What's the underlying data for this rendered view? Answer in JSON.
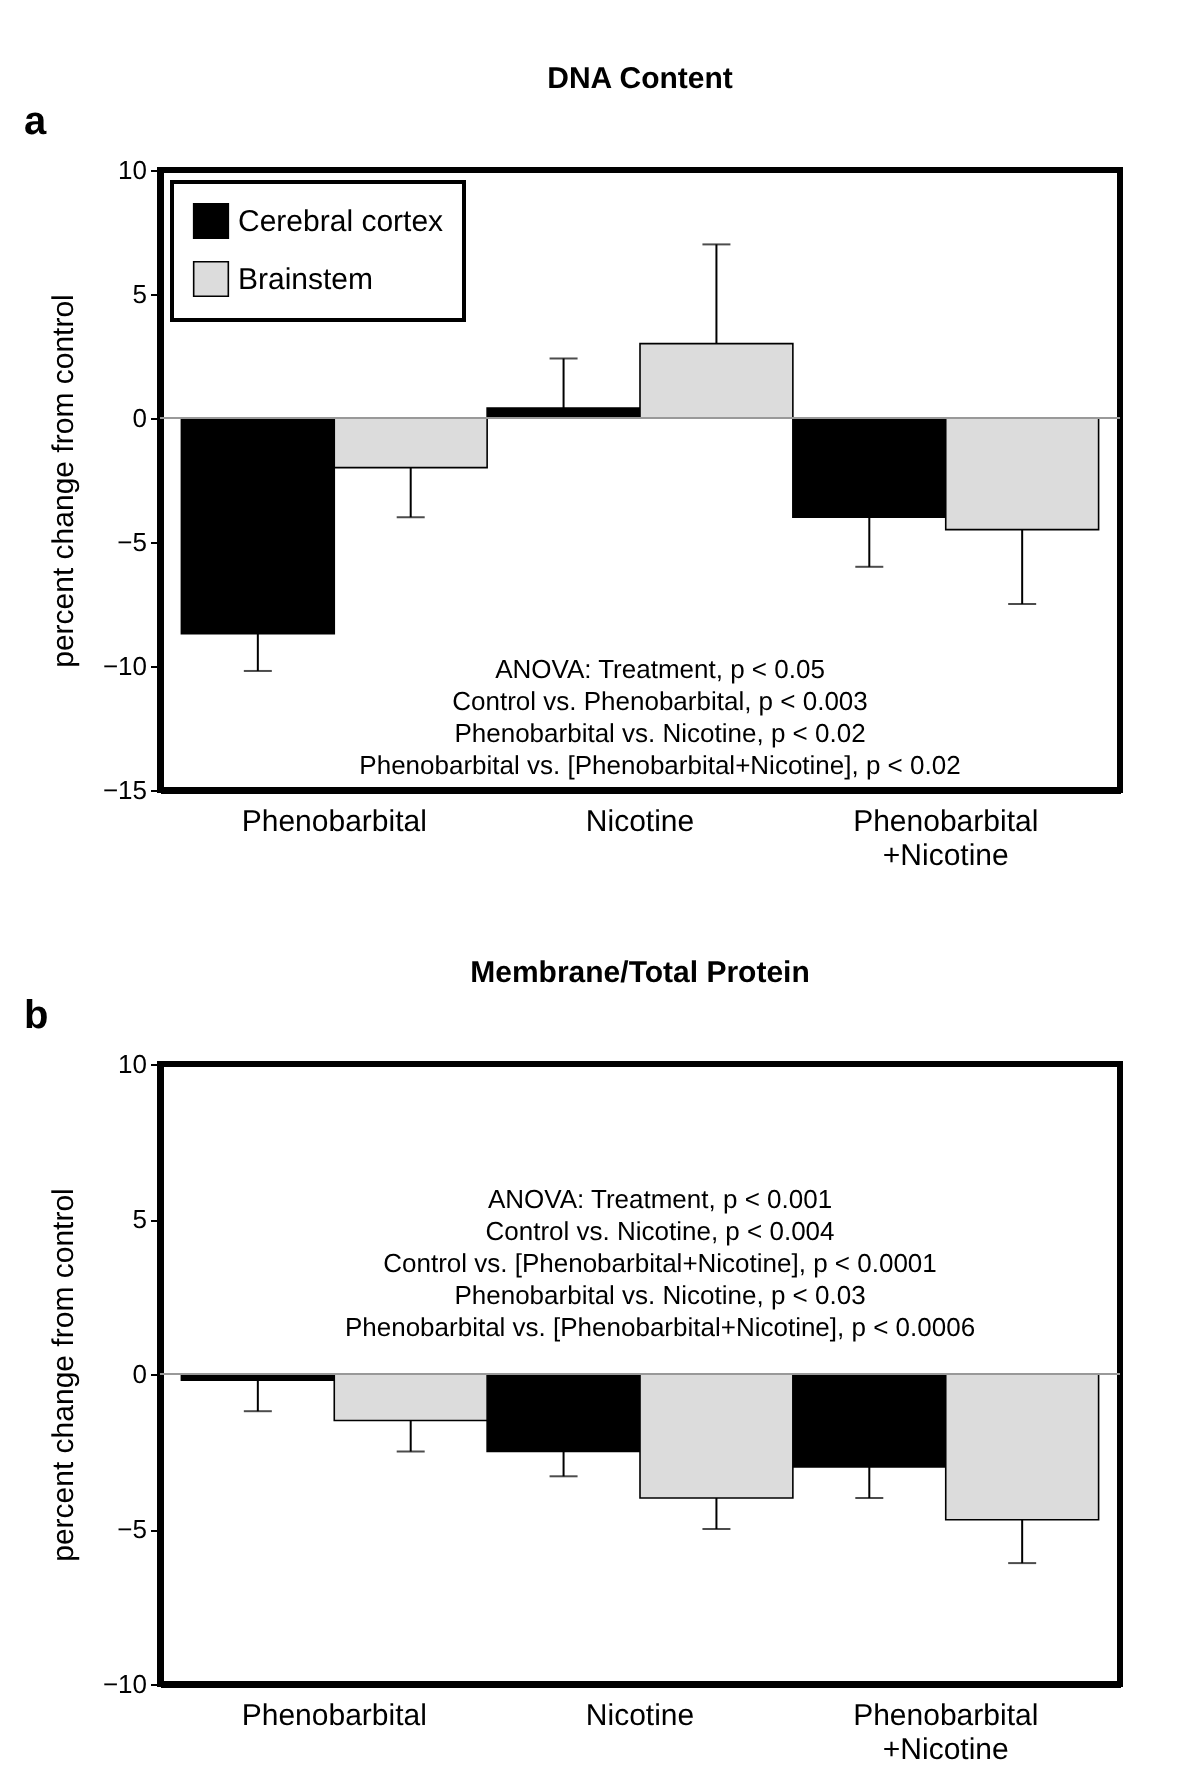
{
  "chart_data": [
    {
      "type": "bar",
      "title": "DNA Content",
      "ylabel": "percent change from control",
      "categories": [
        "Phenobarbital",
        "Nicotine",
        "Phenobarbital\n+Nicotine"
      ],
      "series": [
        {
          "name": "Cerebral cortex",
          "color": "#000000",
          "values": [
            -8.7,
            0.4,
            -4.0
          ],
          "errors": [
            [
              -10.2,
              -8.7
            ],
            [
              0.4,
              2.4
            ],
            [
              -6.0,
              -4.0
            ]
          ]
        },
        {
          "name": "Brainstem",
          "color": "#dcdcdc",
          "values": [
            -2.0,
            3.0,
            -4.5
          ],
          "errors": [
            [
              -4.0,
              -2.0
            ],
            [
              3.0,
              7.0
            ],
            [
              -7.5,
              -4.5
            ]
          ]
        }
      ],
      "ylim": [
        -15,
        10
      ],
      "yticks": [
        -15,
        -10,
        -5,
        0,
        5,
        10
      ],
      "legend": "top left",
      "ref_lines": [
        {
          "axis": "y",
          "value": 0,
          "color": "#999999"
        }
      ],
      "annotations": [
        "a",
        "ANOVA: Treatment, p < 0.05",
        "Control vs. Phenobarbital, p < 0.003",
        "Phenobarbital vs. Nicotine, p < 0.02",
        "Phenobarbital vs. [Phenobarbital+Nicotine], p < 0.02"
      ]
    },
    {
      "type": "bar",
      "title": "Membrane/Total Protein",
      "ylabel": "percent change from control",
      "categories": [
        "Phenobarbital",
        "Nicotine",
        "Phenobarbital\n+Nicotine"
      ],
      "series": [
        {
          "name": "Cerebral cortex",
          "color": "#000000",
          "values": [
            -0.2,
            -2.5,
            -3.0
          ],
          "errors": [
            [
              -1.2,
              -0.2
            ],
            [
              -3.3,
              -2.5
            ],
            [
              -4.0,
              -3.0
            ]
          ]
        },
        {
          "name": "Brainstem",
          "color": "#dcdcdc",
          "values": [
            -1.5,
            -4.0,
            -4.7
          ],
          "errors": [
            [
              -2.5,
              -1.5
            ],
            [
              -5.0,
              -4.0
            ],
            [
              -6.1,
              -4.7
            ]
          ]
        }
      ],
      "ylim": [
        -10,
        10
      ],
      "yticks": [
        -10,
        -5,
        0,
        5,
        10
      ],
      "legend": "top left",
      "ref_lines": [
        {
          "axis": "y",
          "value": 0,
          "color": "#999999"
        }
      ],
      "annotations": [
        "b",
        "ANOVA: Treatment, p < 0.001",
        "Control vs. Nicotine, p < 0.004",
        "Control vs. [Phenobarbital+Nicotine], p < 0.0001",
        "Phenobarbital vs. Nicotine, p < 0.03",
        "Phenobarbital vs. [Phenobarbital+Nicotine], p < 0.0006"
      ]
    }
  ]
}
